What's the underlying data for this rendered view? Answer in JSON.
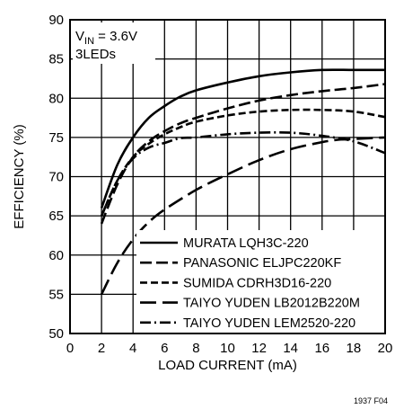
{
  "chart_data": {
    "type": "line",
    "xlabel": "LOAD CURRENT (mA)",
    "ylabel": "EFFICIENCY (%)",
    "xlim": [
      0,
      20
    ],
    "ylim": [
      50,
      90
    ],
    "xticks": [
      "0",
      "2",
      "4",
      "6",
      "8",
      "10",
      "12",
      "14",
      "16",
      "18",
      "20"
    ],
    "yticks": [
      "50",
      "55",
      "60",
      "65",
      "70",
      "75",
      "80",
      "85",
      "90"
    ],
    "grid": true,
    "legend_position": "bottom-right",
    "conditions": {
      "vin_main": "V",
      "vin_sub": "IN",
      "vin_rest": " = 3.6V",
      "leds": "3LEDs"
    },
    "figure_id": "1937 F04",
    "series": [
      {
        "name": "MURATA LQH3C-220",
        "style": "solid",
        "x": [
          2,
          3,
          4,
          5,
          6,
          7,
          8,
          10,
          12,
          14,
          16,
          18,
          20
        ],
        "y": [
          66,
          71.5,
          75,
          77.5,
          79,
          80.2,
          81,
          82,
          82.8,
          83.3,
          83.6,
          83.6,
          83.6
        ]
      },
      {
        "name": "PANASONIC ELJPC220KF",
        "style": "long-dash",
        "x": [
          2,
          3,
          4,
          5,
          6,
          7,
          8,
          10,
          12,
          14,
          16,
          18,
          20
        ],
        "y": [
          64,
          69,
          72.5,
          74.5,
          75.8,
          76.8,
          77.5,
          78.7,
          79.7,
          80.4,
          80.9,
          81.3,
          81.8
        ]
      },
      {
        "name": "SUMIDA CDRH3D16-220",
        "style": "medium-dash",
        "x": [
          2,
          3,
          4,
          5,
          6,
          7,
          8,
          10,
          12,
          14,
          16,
          18,
          20
        ],
        "y": [
          65,
          69.5,
          72.5,
          74.2,
          75.4,
          76.3,
          77,
          77.8,
          78.3,
          78.5,
          78.5,
          78.3,
          77.6
        ]
      },
      {
        "name": "TAIYO YUDEN LB2012B220M",
        "style": "extra-long-dash",
        "x": [
          2,
          3,
          4,
          5,
          6,
          8,
          10,
          12,
          14,
          16,
          17,
          18,
          20
        ],
        "y": [
          55,
          59,
          62,
          64.2,
          65.8,
          68.3,
          70.3,
          72.1,
          73.5,
          74.4,
          74.7,
          74.8,
          75
        ]
      },
      {
        "name": "TAIYO YUDEN LEM2520-220",
        "style": "dash-dot",
        "x": [
          2,
          3,
          4,
          5,
          6,
          7,
          8,
          10,
          12,
          14,
          16,
          18,
          20
        ],
        "y": [
          65,
          69.5,
          72.3,
          73.7,
          74.3,
          74.9,
          75,
          75.4,
          75.6,
          75.6,
          75.2,
          74.5,
          73
        ]
      }
    ]
  }
}
